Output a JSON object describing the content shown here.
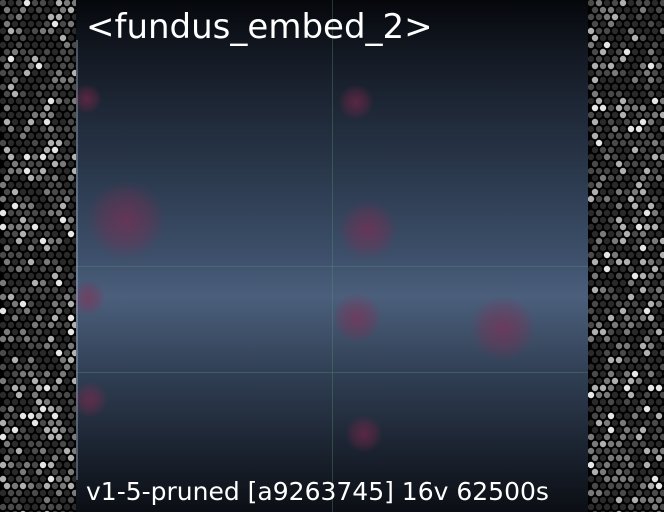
{
  "image": {
    "title": "<fundus_embed_2>",
    "caption": "v1-5-pruned [a9263745]  16v 62500s"
  },
  "colors": {
    "side_background": "#000000",
    "dot_colors": [
      "#2a2a2a",
      "#4a4a4a",
      "#7a7a7a",
      "#b0b0b0",
      "#e6e6e6"
    ],
    "panel_top": "#05070b",
    "panel_middle": "#4b5f7c",
    "blob_tint": "#8c2850"
  }
}
